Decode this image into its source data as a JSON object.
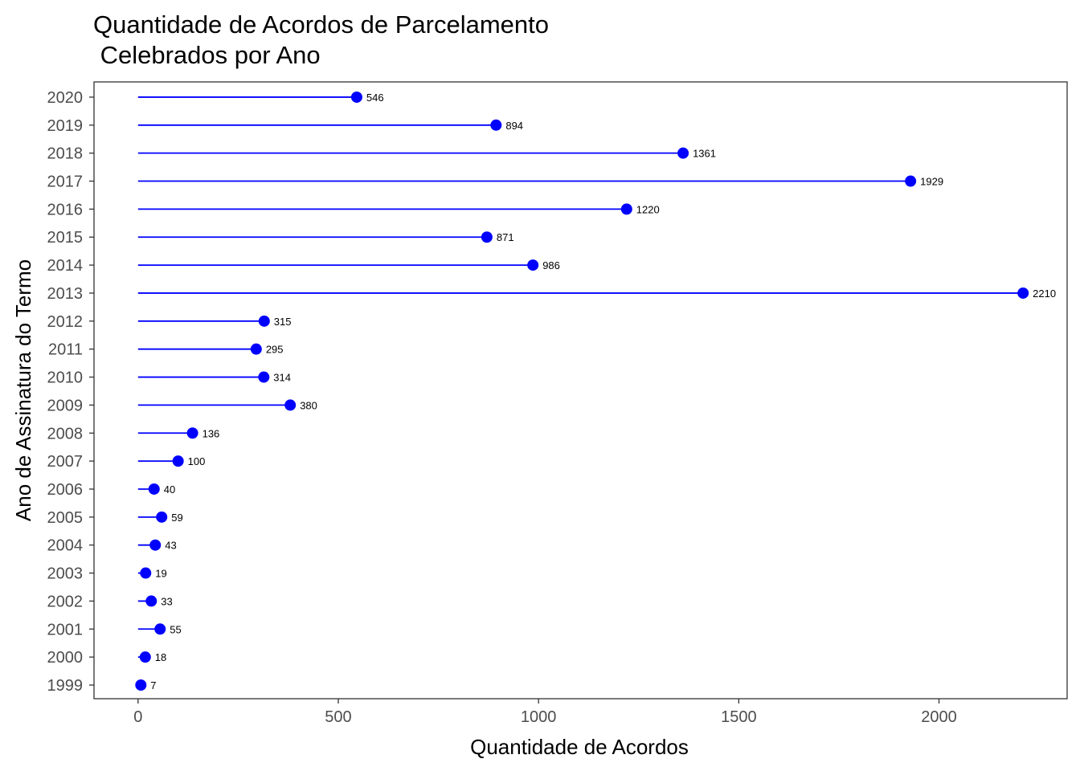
{
  "chart_data": {
    "type": "lollipop",
    "title_lines": [
      "Quantidade de Acordos de Parcelamento",
      " Celebrados por Ano"
    ],
    "xlabel": "Quantidade de Acordos",
    "ylabel": "Ano de Assinatura do Termo",
    "categories": [
      "1999",
      "2000",
      "2001",
      "2002",
      "2003",
      "2004",
      "2005",
      "2006",
      "2007",
      "2008",
      "2009",
      "2010",
      "2011",
      "2012",
      "2013",
      "2014",
      "2015",
      "2016",
      "2017",
      "2018",
      "2019",
      "2020"
    ],
    "values": [
      7,
      18,
      55,
      33,
      19,
      43,
      59,
      40,
      100,
      136,
      380,
      314,
      295,
      315,
      2210,
      986,
      871,
      1220,
      1929,
      1361,
      894,
      546
    ],
    "data_labels": [
      "7",
      "18",
      "55",
      "33",
      "19",
      "43",
      "59",
      "40",
      "100",
      "136",
      "380",
      "314",
      "295",
      "315",
      "2210",
      "986",
      "871",
      "1220",
      "1929",
      "1361",
      "894",
      "546"
    ],
    "xticks": [
      0,
      500,
      1000,
      1500,
      2000
    ],
    "xtick_labels": [
      "0",
      "500",
      "1000",
      "1500",
      "2000"
    ],
    "xlim": [
      -110,
      2320
    ],
    "grid": false,
    "legend": "none",
    "colors": {
      "series": "#0000ff",
      "axis": "#333333",
      "tick_text": "#4d4d4d"
    }
  }
}
